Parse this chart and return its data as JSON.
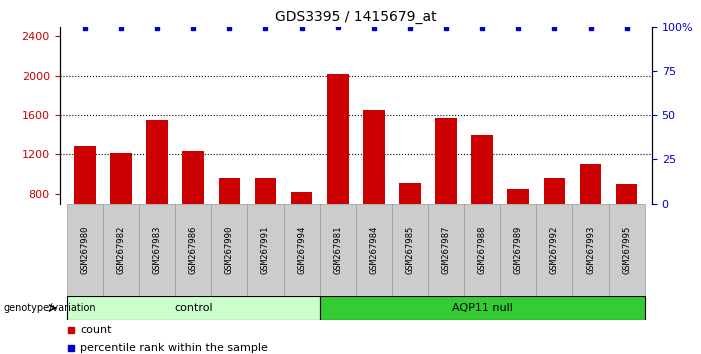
{
  "title": "GDS3395 / 1415679_at",
  "categories": [
    "GSM267980",
    "GSM267982",
    "GSM267983",
    "GSM267986",
    "GSM267990",
    "GSM267991",
    "GSM267994",
    "GSM267981",
    "GSM267984",
    "GSM267985",
    "GSM267987",
    "GSM267988",
    "GSM267989",
    "GSM267992",
    "GSM267993",
    "GSM267995"
  ],
  "bar_values": [
    1290,
    1215,
    1545,
    1230,
    960,
    960,
    815,
    2020,
    1650,
    910,
    1565,
    1400,
    845,
    960,
    1105,
    900
  ],
  "percentile_values": [
    99,
    99,
    99,
    99,
    99,
    99,
    99,
    100,
    99,
    99,
    99,
    99,
    99,
    99,
    99,
    99
  ],
  "bar_color": "#cc0000",
  "dot_color": "#0000cc",
  "ylim_left": [
    700,
    2500
  ],
  "ylim_right": [
    0,
    100
  ],
  "yticks_left": [
    800,
    1200,
    1600,
    2000,
    2400
  ],
  "yticks_right": [
    0,
    25,
    50,
    75,
    100
  ],
  "grid_lines": [
    1200,
    1600,
    2000
  ],
  "group_control_count": 7,
  "group_aqp11_count": 9,
  "group_control_label": "control",
  "group_aqp11_label": "AQP11 null",
  "genotype_label": "genotype/variation",
  "legend_count_label": "count",
  "legend_percentile_label": "percentile rank within the sample",
  "control_color": "#ccffcc",
  "aqp11_color": "#33cc33",
  "xticklabel_bg": "#cccccc",
  "title_fontsize": 10,
  "tick_fontsize": 8,
  "bar_bottom": 700
}
